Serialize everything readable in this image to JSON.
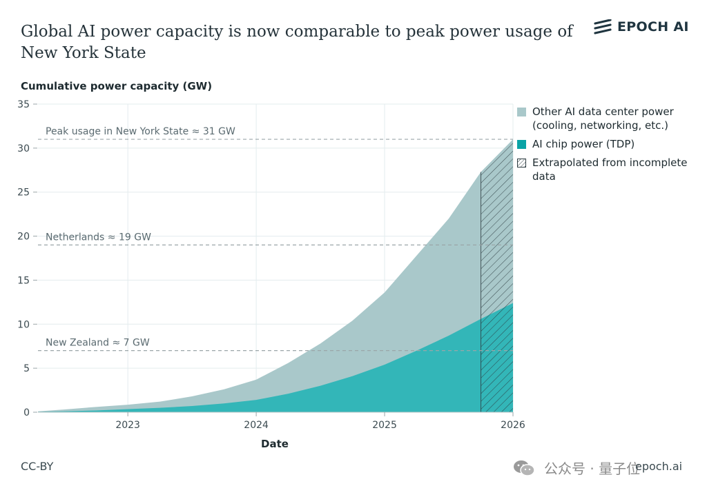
{
  "header": {
    "title": "Global AI power capacity is now comparable to peak power usage of New York State",
    "brand": "EPOCH AI"
  },
  "footer": {
    "license": "CC-BY",
    "watermark": "公众号 · 量子位",
    "site": "epoch.ai"
  },
  "colors": {
    "other_power": "#a9c8ca",
    "chip_power": "#33b6b8",
    "reference_line": "#9aa5a8",
    "grid": "#e3ecee",
    "hatch": "#2b3a3f"
  },
  "icons": {
    "brand": "epoch-logo-icon",
    "watermark": "wechat-icon"
  },
  "chart_data": {
    "type": "area",
    "stacked": true,
    "ylabel": "Cumulative power capacity (GW)",
    "xlabel": "Date",
    "xlim": [
      2022.3,
      2026
    ],
    "ylim": [
      0,
      35
    ],
    "x_ticks": [
      2023,
      2024,
      2025,
      2026
    ],
    "y_ticks": [
      0,
      5,
      10,
      15,
      20,
      25,
      30,
      35
    ],
    "grid": true,
    "legend_position": "right",
    "x": [
      2022.3,
      2022.5,
      2022.75,
      2023.0,
      2023.25,
      2023.5,
      2023.75,
      2024.0,
      2024.25,
      2024.5,
      2024.75,
      2025.0,
      2025.25,
      2025.5,
      2025.75,
      2026.0
    ],
    "series": [
      {
        "name": "AI chip power (TDP)",
        "values": [
          0.05,
          0.1,
          0.2,
          0.35,
          0.5,
          0.7,
          1.0,
          1.4,
          2.1,
          3.0,
          4.1,
          5.4,
          7.0,
          8.7,
          10.6,
          12.4
        ]
      },
      {
        "name": "Other AI data center power (cooling, networking, etc.)",
        "values": [
          0.05,
          0.2,
          0.4,
          0.5,
          0.7,
          1.1,
          1.6,
          2.3,
          3.5,
          4.8,
          6.3,
          8.2,
          10.8,
          13.3,
          16.7,
          18.6
        ]
      }
    ],
    "extrapolated_from": 2025.75,
    "extrapolated_label": "Extrapolated from incomplete data",
    "reference_lines": [
      {
        "label": "Peak usage in New York State ≈ 31 GW",
        "value": 31
      },
      {
        "label": "Netherlands ≈ 19 GW",
        "value": 19
      },
      {
        "label": "New Zealand ≈ 7 GW",
        "value": 7
      }
    ]
  }
}
